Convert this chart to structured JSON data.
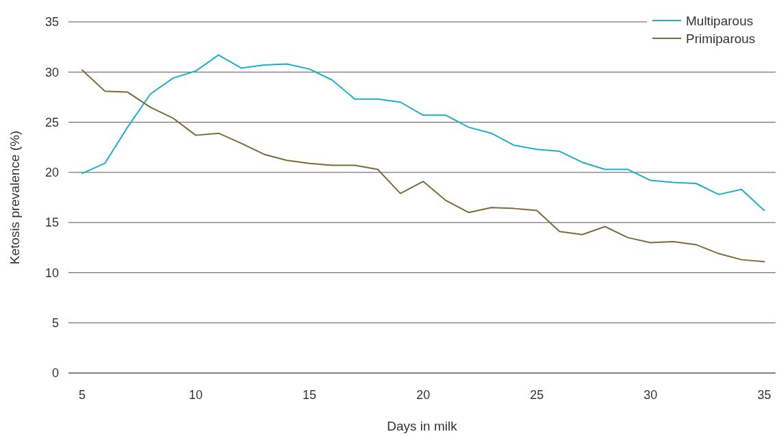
{
  "chart_data": {
    "type": "line",
    "xlabel": "Days in milk",
    "ylabel": "Ketosis prevalence (%)",
    "x": [
      5,
      6,
      7,
      8,
      9,
      10,
      11,
      12,
      13,
      14,
      15,
      16,
      17,
      18,
      19,
      20,
      21,
      22,
      23,
      24,
      25,
      26,
      27,
      28,
      29,
      30,
      31,
      32,
      33,
      34,
      35
    ],
    "series": [
      {
        "name": "Multiparous",
        "color": "#1ab0cc",
        "values": [
          19.9,
          20.9,
          24.5,
          27.8,
          29.4,
          30.1,
          31.7,
          30.4,
          30.7,
          30.8,
          30.3,
          29.2,
          27.3,
          27.3,
          27.0,
          25.7,
          25.7,
          24.5,
          23.9,
          22.7,
          22.3,
          22.1,
          21.0,
          20.3,
          20.3,
          19.2,
          19.0,
          18.9,
          17.8,
          18.3,
          16.2
        ]
      },
      {
        "name": "Primiparous",
        "color": "#7a6a3a",
        "values": [
          30.2,
          28.1,
          28.0,
          26.5,
          25.4,
          23.7,
          23.9,
          22.9,
          21.8,
          21.2,
          20.9,
          20.7,
          20.7,
          20.3,
          17.9,
          19.1,
          17.2,
          16.0,
          16.5,
          16.4,
          16.2,
          14.1,
          13.8,
          14.6,
          13.5,
          13.0,
          13.1,
          12.8,
          11.9,
          11.3,
          11.1
        ]
      }
    ],
    "xlim": [
      4.4,
      35.5
    ],
    "xticks": [
      5,
      10,
      15,
      20,
      25,
      30,
      35
    ],
    "ylim": [
      0,
      35
    ],
    "yticks": [
      0,
      5,
      10,
      15,
      20,
      25,
      30,
      35
    ],
    "grid": "y",
    "legend": "top right",
    "marker": "none",
    "line_style": "solid"
  }
}
